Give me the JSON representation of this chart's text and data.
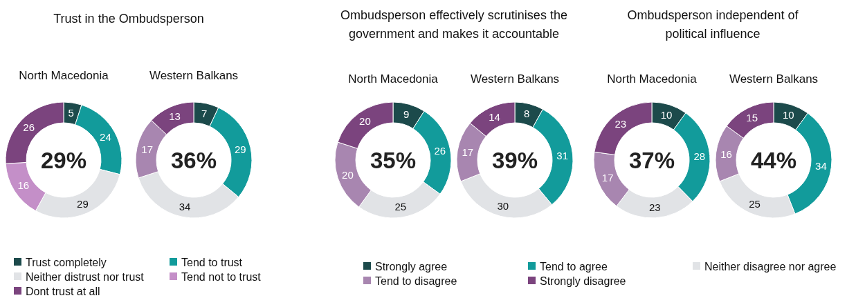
{
  "chart_data": [
    {
      "type": "donut",
      "title": "Trust in the Ombudsperson",
      "categories": [
        "Trust completely",
        "Tend to trust",
        "Neither distrust nor trust",
        "Tend not to trust",
        "Dont trust at all"
      ],
      "colors": [
        "#1c4a4b",
        "#129b9b",
        "#e1e3e6",
        "#c48fc8",
        "#7b447e"
      ],
      "series": [
        {
          "name": "North Macedonia",
          "values": [
            5,
            24,
            29,
            16,
            26
          ]
        },
        {
          "name": "Western Balkans",
          "values": [
            7,
            29,
            34,
            17,
            13
          ],
          "colors": [
            "#1c4a4b",
            "#129b9b",
            "#e1e3e6",
            "#a886b0",
            "#7b447e"
          ]
        }
      ],
      "annotations": [
        "29%",
        "36%"
      ],
      "data_labels": true,
      "legend": "bottom"
    },
    {
      "type": "donut",
      "title": "Ombudsperson effectively scrutinises the government and makes it accountable",
      "categories": [
        "Strongly agree",
        "Tend to agree",
        "Neither disagree nor agree",
        "Tend to disagree",
        "Strongly disagree"
      ],
      "colors": [
        "#1c4a4b",
        "#129b9b",
        "#e1e3e6",
        "#a886b0",
        "#7b447e"
      ],
      "series": [
        {
          "name": "North Macedonia",
          "values": [
            9,
            26,
            25,
            20,
            20
          ]
        },
        {
          "name": "Western Balkans",
          "values": [
            8,
            31,
            30,
            17,
            14
          ]
        }
      ],
      "annotations": [
        "35%",
        "39%"
      ],
      "data_labels": true,
      "legend": "bottom"
    },
    {
      "type": "donut",
      "title": "Ombudsperson independent of political influence",
      "categories": [
        null,
        null,
        null,
        null,
        null
      ],
      "colors": [
        "#1c4a4b",
        "#129b9b",
        "#e1e3e6",
        "#a886b0",
        "#7b447e"
      ],
      "series": [
        {
          "name": "North Macedonia",
          "values": [
            10,
            28,
            23,
            17,
            23
          ]
        },
        {
          "name": "Western Balkans",
          "values": [
            10,
            34,
            25,
            16,
            15
          ]
        }
      ],
      "annotations": [
        "37%",
        "44%"
      ],
      "data_labels": true
    }
  ]
}
